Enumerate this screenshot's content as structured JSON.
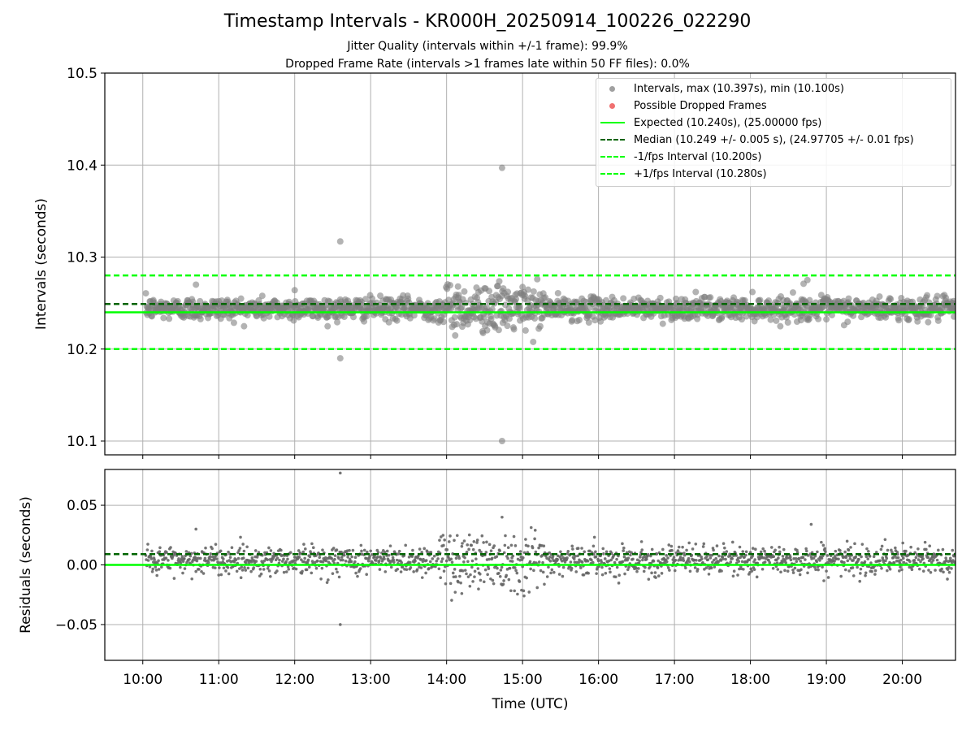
{
  "title": "Timestamp Intervals - KR000H_20250914_100226_022290",
  "subtitle_1": "Jitter Quality (intervals within +/-1 frame): 99.9%",
  "subtitle_2": "Dropped Frame Rate (intervals >1 frames late within 50 FF files): 0.0%",
  "colors": {
    "intervals": "#808080",
    "dropped": "#ff3333",
    "expected": "#00ff00",
    "median": "#006400",
    "bounds": "#00ff00"
  },
  "legend": [
    {
      "label": "Intervals, max (10.397s), min (10.100s)",
      "style": "dot",
      "color": "#a0a0a0"
    },
    {
      "label": "Possible Dropped Frames",
      "style": "dot",
      "color": "#f07070"
    },
    {
      "label": "Expected (10.240s), (25.00000 fps)",
      "style": "solid",
      "color": "#00ff00"
    },
    {
      "label": "Median (10.249 +/- 0.005 s), (24.97705 +/- 0.01 fps)",
      "style": "dashed",
      "color": "#006400"
    },
    {
      "label": "-1/fps Interval (10.200s)",
      "style": "dashed",
      "color": "#00ff00"
    },
    {
      "label": "+1/fps Interval (10.280s)",
      "style": "dashed",
      "color": "#00ff00"
    }
  ],
  "chart_data": [
    {
      "type": "scatter",
      "title": "Timestamp Intervals - KR000H_20250914_100226_022290",
      "xlabel": "",
      "ylabel": "Intervals (seconds)",
      "xlim": [
        9.5,
        20.7
      ],
      "ylim": [
        10.085,
        10.5
      ],
      "yticks": [
        10.1,
        10.2,
        10.3,
        10.4,
        10.5
      ],
      "ytick_labels": [
        "10.1",
        "10.2",
        "10.3",
        "10.4",
        "10.5"
      ],
      "grid": true,
      "legend_position": "top-right",
      "series": [
        {
          "name": "Intervals, max (10.397s), min (10.100s)",
          "style": "scatter",
          "x_range": [
            10.04,
            20.7
          ],
          "center": 10.244,
          "spread": 0.006,
          "points": 1600
        },
        {
          "name": "Expected (10.240s), (25.00000 fps)",
          "style": "solid-line",
          "y": 10.24
        },
        {
          "name": "Median (10.249 +/- 0.005 s), (24.97705 +/- 0.01 fps)",
          "style": "dashed-line",
          "y": 10.249
        },
        {
          "name": "-1/fps Interval (10.200s)",
          "style": "dashed-line",
          "y": 10.2
        },
        {
          "name": "+1/fps Interval (10.280s)",
          "style": "dashed-line",
          "y": 10.28
        }
      ],
      "outliers": [
        {
          "x": 12.6,
          "y": 10.317
        },
        {
          "x": 12.6,
          "y": 10.19
        },
        {
          "x": 14.73,
          "y": 10.397
        },
        {
          "x": 14.73,
          "y": 10.1
        },
        {
          "x": 14.5,
          "y": 10.266
        },
        {
          "x": 14.15,
          "y": 10.268
        },
        {
          "x": 18.75,
          "y": 10.275
        },
        {
          "x": 18.7,
          "y": 10.271
        },
        {
          "x": 10.7,
          "y": 10.27
        },
        {
          "x": 12.0,
          "y": 10.264
        }
      ]
    },
    {
      "type": "scatter",
      "xlabel": "Time (UTC)",
      "ylabel": "Residuals (seconds)",
      "xlim": [
        9.5,
        20.7
      ],
      "ylim": [
        -0.08,
        0.08
      ],
      "yticks": [
        -0.05,
        0.0,
        0.05
      ],
      "ytick_labels": [
        "−0.05",
        "0.00",
        "0.05"
      ],
      "xticks": [
        10,
        11,
        12,
        13,
        14,
        15,
        16,
        17,
        18,
        19,
        20
      ],
      "xtick_labels": [
        "10:00",
        "11:00",
        "12:00",
        "13:00",
        "14:00",
        "15:00",
        "16:00",
        "17:00",
        "18:00",
        "19:00",
        "20:00"
      ],
      "grid": true,
      "series": [
        {
          "name": "Residuals",
          "style": "scatter",
          "x_range": [
            10.04,
            20.7
          ],
          "center": 0.004,
          "spread": 0.006,
          "points": 1600
        },
        {
          "name": "Expected",
          "style": "solid-line",
          "y": 0.0
        },
        {
          "name": "Median",
          "style": "dashed-line",
          "y": 0.009
        }
      ],
      "outliers": [
        {
          "x": 12.6,
          "y": 0.077
        },
        {
          "x": 12.6,
          "y": -0.05
        },
        {
          "x": 14.73,
          "y": 0.04
        },
        {
          "x": 14.2,
          "y": -0.024
        },
        {
          "x": 18.8,
          "y": 0.034
        },
        {
          "x": 10.7,
          "y": 0.03
        }
      ]
    }
  ]
}
